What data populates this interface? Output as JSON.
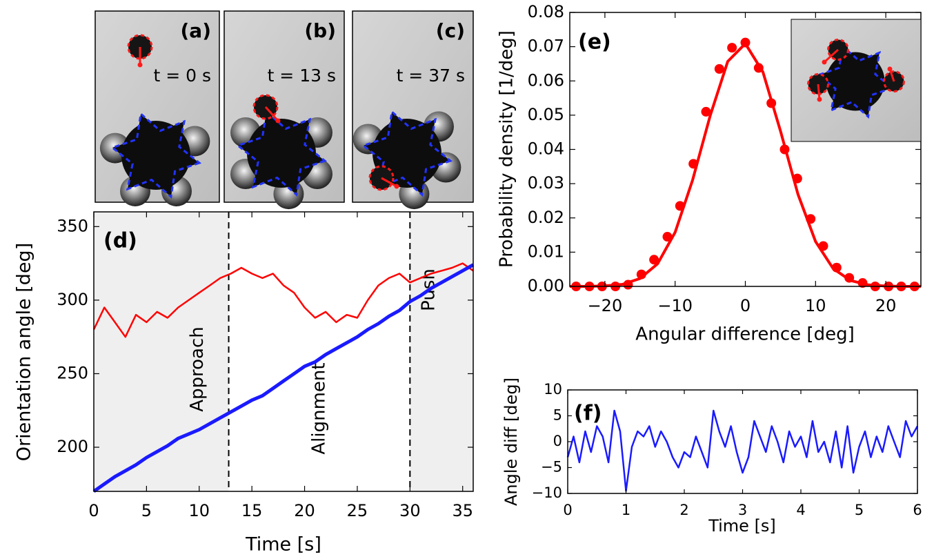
{
  "micrographs": [
    {
      "label": "(a)",
      "time": "t = 0 s"
    },
    {
      "label": "(b)",
      "time": "t = 13 s"
    },
    {
      "label": "(c)",
      "time": "t = 37 s"
    }
  ],
  "chart_data": [
    {
      "type": "line",
      "title": "(d)",
      "x_label": "Time [s]",
      "y_label": "Orientation angle [deg]",
      "xlim": [
        0,
        36
      ],
      "ylim": [
        170,
        360
      ],
      "xticks": [
        0,
        5,
        10,
        15,
        20,
        25,
        30,
        35
      ],
      "yticks": [
        200,
        250,
        300,
        350
      ],
      "phases": [
        {
          "name": "Approach",
          "start": 0,
          "end": 12.8,
          "shaded": true
        },
        {
          "name": "Alignment",
          "start": 12.8,
          "end": 30,
          "shaded": false
        },
        {
          "name": "Push",
          "start": 30,
          "end": 36,
          "shaded": true
        }
      ],
      "x": [
        0,
        1,
        2,
        3,
        4,
        5,
        6,
        7,
        8,
        9,
        10,
        11,
        12,
        13,
        14,
        15,
        16,
        17,
        18,
        19,
        20,
        21,
        22,
        23,
        24,
        25,
        26,
        27,
        28,
        29,
        30,
        31,
        32,
        33,
        34,
        35,
        36
      ],
      "series": [
        {
          "color": "#ff0000",
          "values": [
            280,
            295,
            285,
            275,
            290,
            285,
            292,
            288,
            295,
            300,
            305,
            310,
            315,
            318,
            322,
            318,
            315,
            318,
            310,
            305,
            295,
            288,
            292,
            285,
            290,
            288,
            300,
            310,
            315,
            318,
            312,
            315,
            318,
            320,
            322,
            325,
            320
          ]
        },
        {
          "color": "#1a1aff",
          "values": [
            170,
            175,
            180,
            184,
            188,
            193,
            197,
            201,
            206,
            209,
            212,
            216,
            220,
            224,
            228,
            232,
            235,
            240,
            245,
            250,
            255,
            258,
            263,
            267,
            271,
            275,
            280,
            284,
            289,
            293,
            299,
            303,
            308,
            312,
            316,
            320,
            324
          ]
        }
      ]
    },
    {
      "type": "scatter",
      "title": "(e)",
      "x_label": "Angular difference [deg]",
      "y_label": "Probability density [1/deg]",
      "xlim": [
        -25,
        25
      ],
      "ylim": [
        0,
        0.08
      ],
      "xticks": [
        {
          "value": -20,
          "label": "−20"
        },
        {
          "value": -10,
          "label": "−10"
        },
        0,
        10,
        20
      ],
      "yticks": [
        {
          "value": 0,
          "label": "0.00"
        },
        0.01,
        0.02,
        0.03,
        0.04,
        0.05,
        0.06,
        0.07,
        0.08
      ],
      "series": [
        {
          "type": "line",
          "color": "#ff0000",
          "x": [
            -25,
            -22.5,
            -20,
            -17.5,
            -15,
            -12.5,
            -10,
            -7.5,
            -5,
            -2.5,
            0,
            2.5,
            5,
            7.5,
            10,
            12.5,
            15,
            17.5,
            20,
            22.5,
            25
          ],
          "values": [
            0,
            0,
            0.00015,
            0.0006,
            0.0023,
            0.0066,
            0.0158,
            0.0311,
            0.0499,
            0.0657,
            0.0709,
            0.0626,
            0.0454,
            0.0269,
            0.0131,
            0.0052,
            0.0017,
            0.00045,
            0.0001,
            0,
            0
          ]
        },
        {
          "type": "scatter",
          "color": "#ff0000",
          "x": [
            -24.1,
            -22.2,
            -20.4,
            -18.5,
            -16.7,
            -14.8,
            -13.0,
            -11.1,
            -9.3,
            -7.4,
            -5.6,
            -3.7,
            -1.9,
            0,
            1.9,
            3.7,
            5.6,
            7.4,
            9.3,
            11.1,
            13.0,
            14.8,
            16.7,
            18.5,
            20.4,
            22.2,
            24.1
          ],
          "values": [
            0,
            0,
            0,
            0,
            0.0005,
            0.0035,
            0.0078,
            0.0145,
            0.0235,
            0.0358,
            0.051,
            0.0635,
            0.0697,
            0.0712,
            0.0638,
            0.0535,
            0.04,
            0.0315,
            0.0197,
            0.0118,
            0.0055,
            0.0025,
            0.001,
            0,
            0,
            0,
            0
          ]
        }
      ]
    },
    {
      "type": "line",
      "title": "(f)",
      "x_label": "Time [s]",
      "y_label": "Angle diff [deg]",
      "xlim": [
        0,
        6
      ],
      "ylim": [
        -10,
        10
      ],
      "xticks": [
        0,
        1,
        2,
        3,
        4,
        5,
        6
      ],
      "yticks": [
        {
          "value": -10,
          "label": "−10"
        },
        {
          "value": -5,
          "label": "−5"
        },
        0,
        5,
        10
      ],
      "x": [
        0,
        0.1,
        0.2,
        0.3,
        0.4,
        0.5,
        0.6,
        0.7,
        0.8,
        0.9,
        1,
        1.1,
        1.2,
        1.3,
        1.4,
        1.5,
        1.6,
        1.7,
        1.8,
        1.9,
        2,
        2.1,
        2.2,
        2.3,
        2.4,
        2.5,
        2.6,
        2.7,
        2.8,
        2.9,
        3,
        3.1,
        3.2,
        3.3,
        3.4,
        3.5,
        3.6,
        3.7,
        3.8,
        3.9,
        4,
        4.1,
        4.2,
        4.3,
        4.4,
        4.5,
        4.6,
        4.7,
        4.8,
        4.9,
        5,
        5.1,
        5.2,
        5.3,
        5.4,
        5.5,
        5.6,
        5.7,
        5.8,
        5.9,
        6
      ],
      "series": [
        {
          "color": "#1a1aff",
          "values": [
            -3,
            1,
            -4,
            2,
            -2,
            3,
            1,
            -4,
            6,
            2,
            -9.5,
            -1,
            2,
            1,
            3,
            -1,
            2,
            0,
            -3,
            -5,
            -2,
            -3,
            1,
            -2,
            -5,
            6,
            2,
            -1,
            3,
            -2,
            -6,
            -3,
            4,
            1,
            -2,
            3,
            0,
            -4,
            2,
            -1,
            1,
            -3,
            4,
            -2,
            0,
            -4,
            2,
            -5,
            3,
            -6,
            -1,
            2,
            -3,
            1,
            -2,
            3,
            0,
            -3,
            4,
            1,
            3
          ]
        }
      ]
    }
  ]
}
